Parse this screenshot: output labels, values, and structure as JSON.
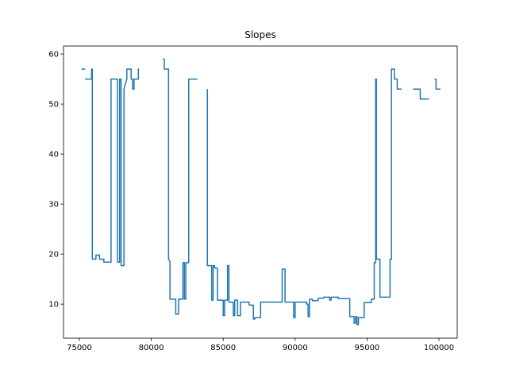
{
  "chart_data": {
    "type": "line",
    "title": "Slopes",
    "x": [
      75150,
      75400,
      null,
      75400,
      75850,
      75850,
      75900,
      75900,
      76150,
      76150,
      76400,
      76400,
      76700,
      76700,
      77200,
      77200,
      77650,
      77650,
      77800,
      77800,
      77900,
      77900,
      78100,
      78100,
      78300,
      78300,
      78600,
      78600,
      78700,
      78700,
      78800,
      78800,
      79100,
      79100,
      79150,
      null,
      80800,
      80900,
      80900,
      81200,
      81200,
      81300,
      81300,
      81700,
      81700,
      81900,
      81900,
      82200,
      82200,
      82300,
      82300,
      82400,
      82400,
      82600,
      82600,
      83200,
      null,
      83900,
      83900,
      84200,
      84200,
      84300,
      84300,
      84400,
      84400,
      84600,
      84600,
      85000,
      85000,
      85100,
      85100,
      85300,
      85300,
      85400,
      85400,
      85700,
      85700,
      85800,
      85800,
      86000,
      86000,
      86200,
      86200,
      86800,
      86800,
      87100,
      87100,
      87200,
      87200,
      87600,
      87600,
      89100,
      89100,
      89300,
      89300,
      89900,
      89900,
      90000,
      90000,
      90800,
      90800,
      90900,
      90900,
      91000,
      91000,
      91200,
      91200,
      91600,
      91600,
      92000,
      92000,
      92400,
      92400,
      92500,
      92500,
      93000,
      93000,
      93800,
      93800,
      94100,
      94100,
      94200,
      94200,
      94300,
      94300,
      94400,
      94400,
      94800,
      94800,
      95300,
      95300,
      95500,
      95500,
      95600,
      95600,
      95650,
      95650,
      95900,
      95900,
      96600,
      96600,
      96700,
      96700,
      96900,
      96900,
      97100,
      97100,
      97400,
      null,
      98200,
      98700,
      98700,
      99300,
      null,
      99700,
      99800,
      99800,
      100100
    ],
    "values": [
      57,
      57,
      null,
      55,
      55,
      57,
      57,
      19,
      19,
      19.8,
      19.8,
      19,
      19,
      18.4,
      18.4,
      55,
      55,
      18.4,
      18.4,
      55,
      55,
      17.7,
      17.7,
      53,
      55,
      57,
      57,
      55,
      55,
      53,
      53,
      55,
      55,
      57,
      57,
      null,
      59,
      59,
      57,
      57,
      19,
      18.5,
      11,
      11,
      8,
      8,
      11,
      11,
      18.3,
      18.3,
      11,
      11,
      18.3,
      18.3,
      55,
      55,
      null,
      53,
      17.7,
      17.7,
      10.8,
      10.8,
      17.7,
      17.7,
      17.2,
      17.2,
      10.8,
      10.8,
      7.7,
      7.7,
      10.8,
      10.8,
      17.7,
      17.7,
      10.4,
      10.4,
      7.7,
      7.7,
      10.8,
      10.8,
      7.7,
      7.7,
      10.4,
      10.4,
      9.8,
      9.8,
      7,
      7,
      7.3,
      7.3,
      10.4,
      10.4,
      17,
      17,
      10.4,
      10.4,
      7.3,
      7.3,
      10.4,
      10.4,
      10,
      10,
      7.5,
      7.5,
      11,
      11,
      10.7,
      10.7,
      11.2,
      11.2,
      11.4,
      11.4,
      10.8,
      10.8,
      11.4,
      11.4,
      11.1,
      11.1,
      7.5,
      7.5,
      6.2,
      6.2,
      7.5,
      7.5,
      5.9,
      5.9,
      7.3,
      7.3,
      10.3,
      10.3,
      11,
      11,
      18.3,
      18.3,
      55,
      55,
      19,
      19,
      11.4,
      11.4,
      19,
      19,
      57,
      57,
      55,
      55,
      53,
      53,
      null,
      53,
      53,
      51,
      51,
      null,
      55,
      55,
      53,
      53
    ],
    "color": "#1f77b4",
    "xlim": [
      73896,
      101269
    ],
    "xticks": [
      75000,
      80000,
      85000,
      90000,
      95000,
      100000
    ],
    "ylim": [
      3.2,
      61.6
    ],
    "yticks": [
      10,
      20,
      30,
      40,
      50,
      60
    ]
  }
}
